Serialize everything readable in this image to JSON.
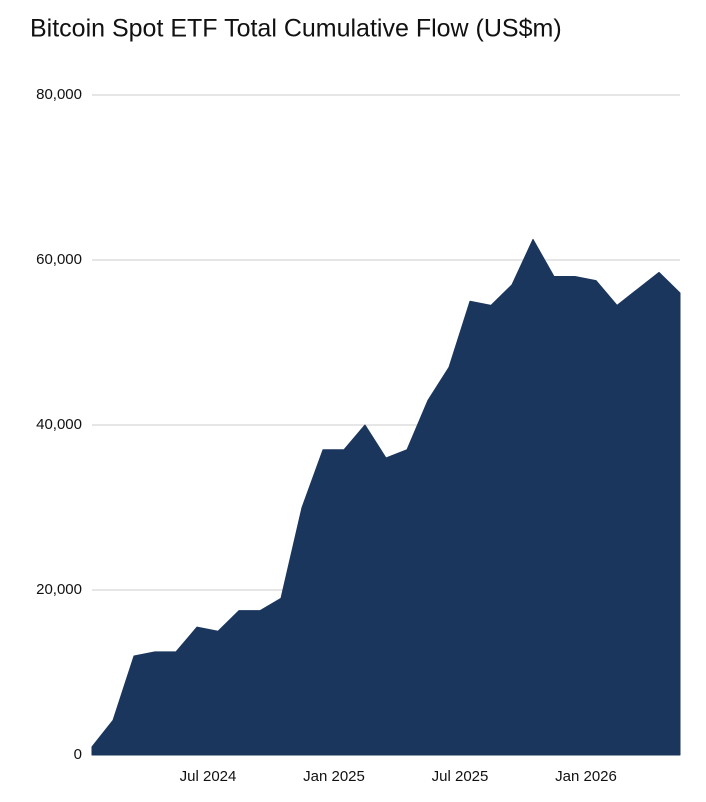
{
  "chart_data": {
    "type": "area",
    "title": "Bitcoin Spot ETF Total Cumulative Flow (US$m)",
    "x": [
      "2024-01",
      "2024-02",
      "2024-03",
      "2024-04",
      "2024-05",
      "2024-06",
      "2024-07",
      "2024-08",
      "2024-09",
      "2024-10",
      "2024-11",
      "2024-12",
      "2025-01",
      "2025-02",
      "2025-03",
      "2025-04",
      "2025-05",
      "2025-06",
      "2025-07",
      "2025-08",
      "2025-09",
      "2025-10",
      "2025-11",
      "2025-12",
      "2026-01",
      "2026-02",
      "2026-03",
      "2026-04",
      "2026-05"
    ],
    "values": [
      1000,
      4200,
      12000,
      12500,
      12500,
      15500,
      15000,
      17500,
      17500,
      19000,
      30000,
      37000,
      37000,
      40000,
      36000,
      37000,
      43000,
      47000,
      55000,
      54500,
      57000,
      62500,
      58000,
      58000,
      57500,
      54500,
      56500,
      58500,
      56000
    ],
    "color": "#1b365d",
    "xticks": [
      {
        "value": "2024-07",
        "label": "Jul 2024"
      },
      {
        "value": "2025-01",
        "label": "Jan 2025"
      },
      {
        "value": "2025-07",
        "label": "Jul 2025"
      },
      {
        "value": "2026-01",
        "label": "Jan 2026"
      }
    ],
    "ylim": [
      0,
      80000
    ],
    "yticks": [
      0,
      {
        "value": 20000,
        "label": "20,000"
      },
      {
        "value": 40000,
        "label": "40,000"
      },
      {
        "value": 60000,
        "label": "60,000"
      },
      {
        "value": 80000,
        "label": "80,000"
      }
    ],
    "grid": true
  }
}
